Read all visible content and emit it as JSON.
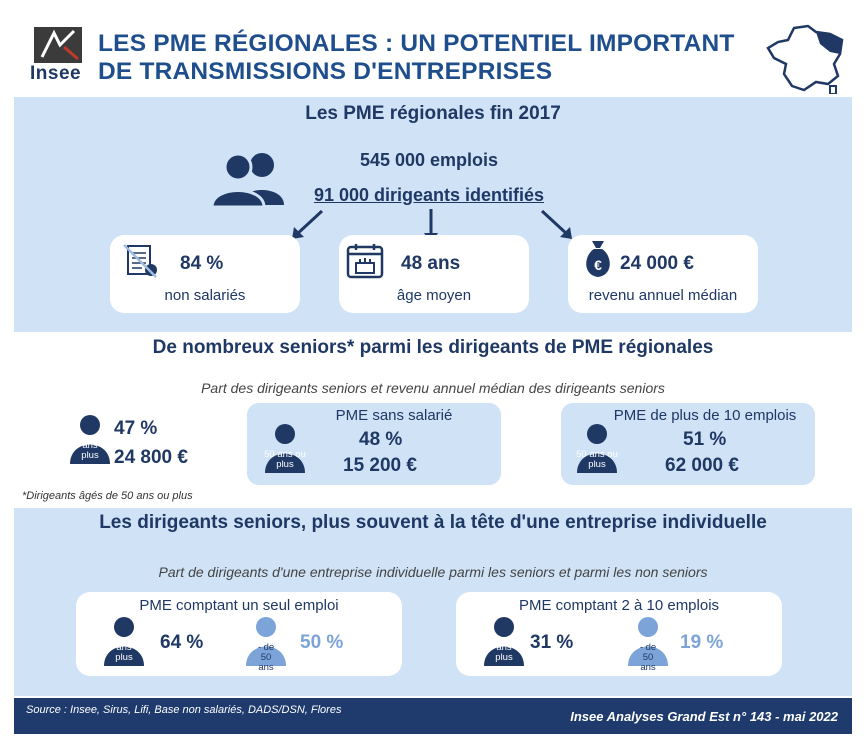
{
  "header": {
    "logo_text": "Insee",
    "title_line1": "LES PME RÉGIONALES : UN POTENTIEL IMPORTANT",
    "title_line2": "DE TRANSMISSIONS D'ENTREPRISES"
  },
  "section1": {
    "title": "Les PME régionales fin 2017",
    "jobs": "545 000 emplois",
    "leaders": "91 000 dirigeants identifiés",
    "cards": [
      {
        "value": "84 %",
        "label": "non salariés",
        "icon": "payslip-crossed-icon"
      },
      {
        "value": "48 ans",
        "label": "âge moyen",
        "icon": "birthday-calendar-icon"
      },
      {
        "value": "24 000 €",
        "label": "revenu annuel médian",
        "icon": "euro-bag-icon"
      }
    ]
  },
  "section2": {
    "title": "De nombreux seniors* parmi les dirigeants de PME régionales",
    "subtitle": "Part des dirigeants seniors et revenu annuel médian des dirigeants seniors",
    "person_label": "50 ans ou plus",
    "overall": {
      "share": "47 %",
      "income": "24 800 €"
    },
    "panels": [
      {
        "title": "PME sans salarié",
        "share": "48 %",
        "income": "15 200 €"
      },
      {
        "title": "PME de plus de 10 emplois",
        "share": "51 %",
        "income": "62 000 €"
      }
    ],
    "note": "*Dirigeants âgés de 50 ans ou plus"
  },
  "section3": {
    "title": "Les dirigeants seniors, plus souvent à la tête d'une entreprise individuelle",
    "subtitle": "Part de dirigeants d'une entreprise individuelle parmi les seniors et parmi les non seniors",
    "senior_label": "50 ans ou plus",
    "junior_label": "- de 50 ans",
    "panels": [
      {
        "title": "PME comptant un seul emploi",
        "senior": "64 %",
        "junior": "50 %"
      },
      {
        "title": "PME comptant 2 à 10 emplois",
        "senior": "31 %",
        "junior": "19 %"
      }
    ]
  },
  "footer": {
    "source": "Source : Insee, Sirus, Lifi, Base non salariés, DADS/DSN, Flores",
    "reference": "Insee Analyses Grand Est n° 143 - mai 2022"
  },
  "colors": {
    "dark_blue": "#1f3864",
    "band": "#cfe2f6",
    "light_person": "#7ca4d8",
    "footer": "#1f3b6e"
  }
}
